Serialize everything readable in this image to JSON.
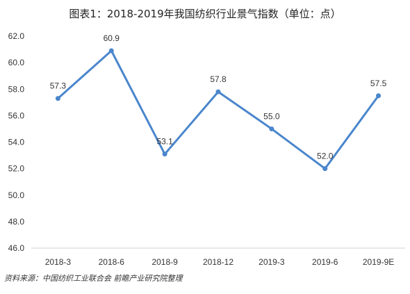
{
  "chart_data": {
    "type": "line",
    "title": "图表1：2018-2019年我国纺织行业景气指数（单位：点）",
    "categories": [
      "2018-3",
      "2018-6",
      "2018-9",
      "2018-12",
      "2019-3",
      "2019-6",
      "2019-9E"
    ],
    "series": [
      {
        "values": [
          57.3,
          60.9,
          53.1,
          57.8,
          55.0,
          52.0,
          57.5
        ],
        "color": "#4a86cc"
      }
    ],
    "data_labels": [
      "57.3",
      "60.9",
      "53.1",
      "57.8",
      "55.0",
      "52.0",
      "57.5"
    ],
    "ylim": [
      46.0,
      62.0
    ],
    "yticks": [
      "46.0",
      "48.0",
      "50.0",
      "52.0",
      "54.0",
      "56.0",
      "58.0",
      "60.0",
      "62.0"
    ],
    "grid": false,
    "xlabel": "",
    "ylabel": ""
  },
  "footer": {
    "source": "资料来源：中国纺织工业联合会 前瞻产业研究院整理"
  }
}
